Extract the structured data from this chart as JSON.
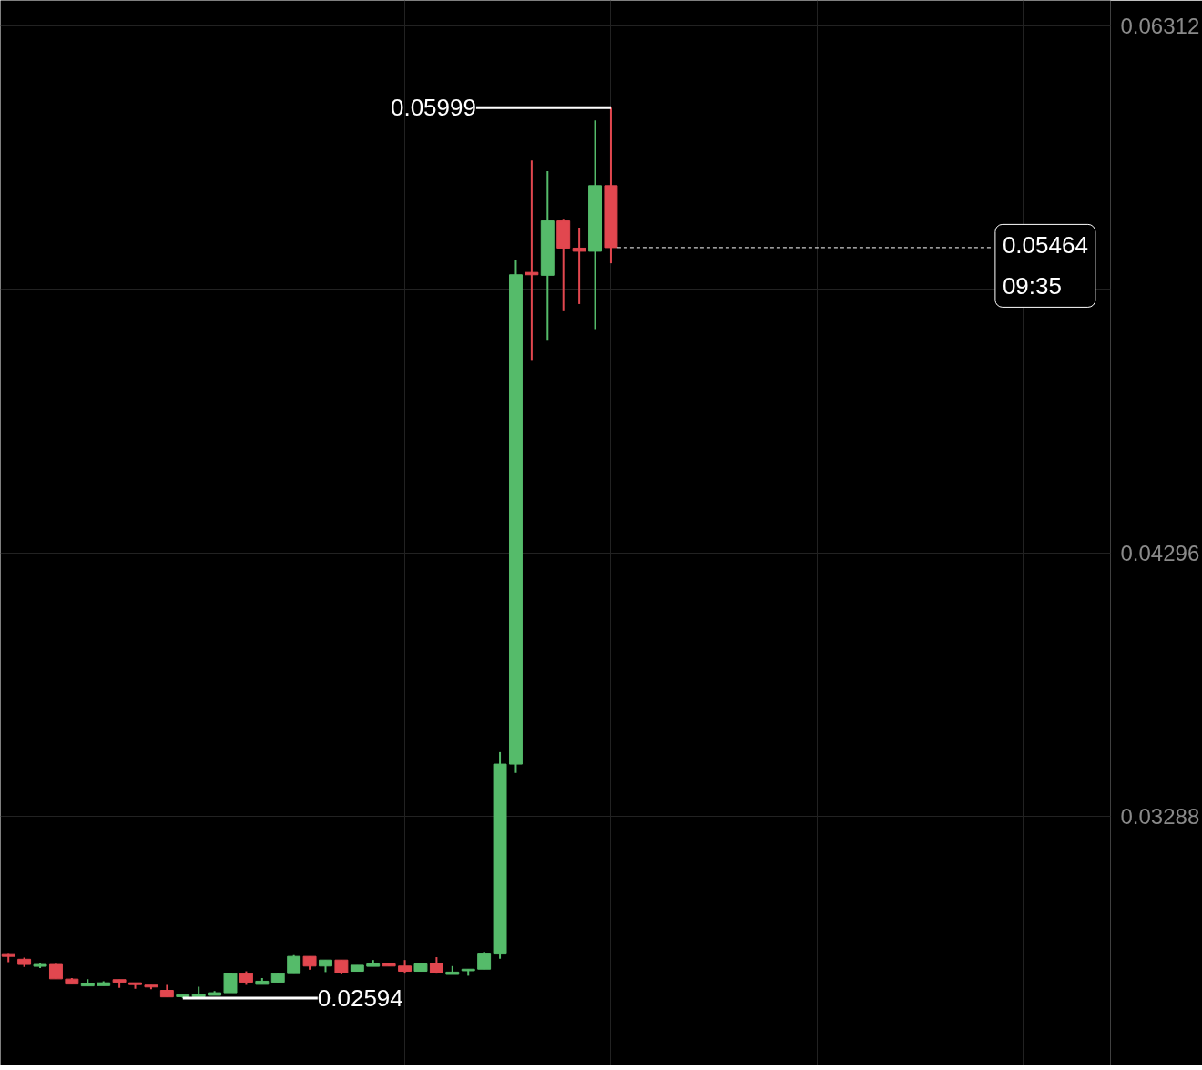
{
  "chart_data": {
    "type": "candlestick",
    "categories": [
      null,
      null,
      null,
      null,
      null,
      null,
      null,
      null,
      null,
      null,
      null,
      null,
      null,
      null,
      null,
      null,
      null,
      null,
      null,
      null,
      null,
      null,
      null,
      null,
      null,
      null,
      null,
      null,
      null,
      null,
      null,
      null,
      null,
      null,
      null,
      null,
      null,
      null,
      null,
      null,
      null,
      null,
      null,
      null,
      null,
      null,
      null,
      null,
      null,
      null,
      null,
      null,
      null,
      null,
      null,
      null,
      null,
      null,
      null,
      null,
      null,
      null,
      null,
      null,
      null,
      null,
      null,
      null,
      null,
      null
    ],
    "ohlc": [
      [
        0.02761,
        0.02763,
        0.02732,
        0.02754
      ],
      [
        0.02743,
        0.02749,
        0.02714,
        0.02723
      ],
      [
        0.02716,
        0.02728,
        0.02709,
        0.02723
      ],
      [
        0.02723,
        0.02727,
        0.02668,
        0.02668
      ],
      [
        0.02667,
        0.02671,
        0.02648,
        0.02648
      ],
      [
        0.02641,
        0.02667,
        0.02641,
        0.02651
      ],
      [
        0.02642,
        0.02659,
        0.02642,
        0.02653
      ],
      [
        0.02665,
        0.02665,
        0.02634,
        0.02655
      ],
      [
        0.02653,
        0.02653,
        0.0263,
        0.02646
      ],
      [
        0.02644,
        0.02644,
        0.02628,
        0.02637
      ],
      [
        0.02624,
        0.02645,
        0.02599,
        0.02599
      ],
      [
        0.026,
        0.02607,
        0.02594,
        0.02607
      ],
      [
        0.026,
        0.02638,
        0.026,
        0.02609
      ],
      [
        0.02605,
        0.02621,
        0.02605,
        0.02615
      ],
      [
        0.02615,
        0.02688,
        0.02615,
        0.02688
      ],
      [
        0.02688,
        0.02697,
        0.02645,
        0.02655
      ],
      [
        0.02647,
        0.02671,
        0.02647,
        0.02659
      ],
      [
        0.02655,
        0.02688,
        0.02655,
        0.02688
      ],
      [
        0.02688,
        0.02759,
        0.02688,
        0.02754
      ],
      [
        0.02754,
        0.02754,
        0.02703,
        0.02717
      ],
      [
        0.02717,
        0.0274,
        0.02694,
        0.0274
      ],
      [
        0.0274,
        0.0274,
        0.02685,
        0.02691
      ],
      [
        0.02697,
        0.0272,
        0.02697,
        0.0272
      ],
      [
        0.02716,
        0.0274,
        0.02716,
        0.02725
      ],
      [
        0.02725,
        0.02728,
        0.02717,
        0.02717
      ],
      [
        0.02717,
        0.0274,
        0.02688,
        0.02697
      ],
      [
        0.02697,
        0.02725,
        0.02697,
        0.02725
      ],
      [
        0.02728,
        0.02751,
        0.02688,
        0.02691
      ],
      [
        0.02685,
        0.02717,
        0.02685,
        0.02694
      ],
      [
        0.02699,
        0.02705,
        0.0268,
        0.02705
      ],
      [
        0.02705,
        0.02772,
        0.02705,
        0.02763
      ],
      [
        0.02763,
        0.03535,
        0.02745,
        0.03489
      ],
      [
        0.03489,
        0.05418,
        0.03455,
        0.0536
      ],
      [
        0.05369,
        0.05797,
        0.05034,
        0.0536
      ],
      [
        0.05358,
        0.05756,
        0.05111,
        0.05566
      ],
      [
        0.05566,
        0.05571,
        0.05224,
        0.05462
      ],
      [
        0.05462,
        0.0554,
        0.05248,
        0.0545
      ],
      [
        0.0545,
        0.0595,
        0.05152,
        0.05701
      ],
      [
        0.05701,
        0.05999,
        0.05404,
        0.05464
      ],
      null,
      null,
      null,
      null,
      null,
      null,
      null,
      null,
      null,
      null,
      null,
      null,
      null,
      null,
      null,
      null,
      null,
      null,
      null,
      null,
      null,
      null,
      null,
      null,
      null,
      null,
      null,
      null,
      null,
      null,
      null
    ],
    "colors": [
      "#e2474f",
      "#e2474f",
      "#55bb6a",
      "#e2474f",
      "#e2474f",
      "#55bb6a",
      "#55bb6a",
      "#e2474f",
      "#e2474f",
      "#e2474f",
      "#e2474f",
      "#55bb6a",
      "#55bb6a",
      "#55bb6a",
      "#55bb6a",
      "#e2474f",
      "#55bb6a",
      "#55bb6a",
      "#55bb6a",
      "#e2474f",
      "#55bb6a",
      "#e2474f",
      "#55bb6a",
      "#55bb6a",
      "#e2474f",
      "#e2474f",
      "#55bb6a",
      "#e2474f",
      "#55bb6a",
      "#55bb6a",
      "#55bb6a",
      "#55bb6a",
      "#55bb6a",
      "#e2474f",
      "#55bb6a",
      "#e2474f",
      "#e2474f",
      "#55bb6a",
      "#e2474f",
      null,
      null,
      null,
      null,
      null,
      null,
      null,
      null,
      null,
      null,
      null,
      null,
      null,
      null,
      null,
      null,
      null,
      null,
      null,
      null,
      null,
      null,
      null,
      null,
      null,
      null,
      null,
      null,
      null,
      null,
      null
    ],
    "ylim": [
      0.02335,
      0.06409
    ],
    "yticks": [
      0.03288,
      0.04296,
      {
        "value": 0.05304,
        "label": null
      },
      0.06312
    ],
    "grid": true,
    "annotations": [
      "0.05999",
      "0.02594"
    ],
    "ref_lines": [
      {
        "axis": "y",
        "value": 0.05464,
        "label": "0.05464\n09:35",
        "color": "#ffffff",
        "line_style": "dashed"
      }
    ]
  }
}
